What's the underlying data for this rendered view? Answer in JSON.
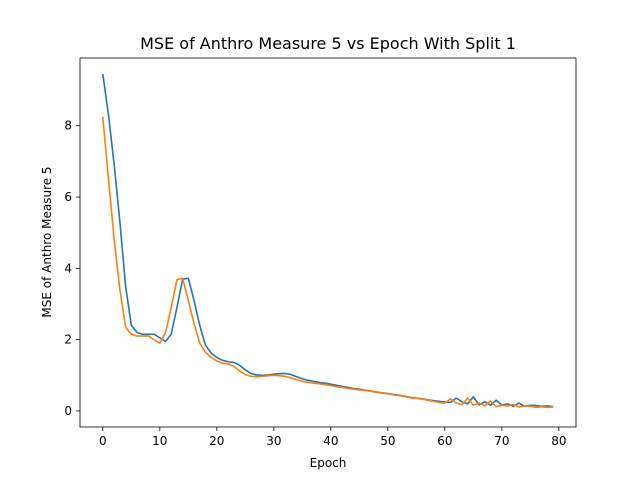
{
  "chart_data": {
    "type": "line",
    "title": "MSE of Anthro Measure 5 vs Epoch With Split 1",
    "xlabel": "Epoch",
    "ylabel": "MSE of Anthro Measure 5",
    "xlim": [
      -4,
      83
    ],
    "ylim": [
      -0.45,
      9.9
    ],
    "xticks": [
      0,
      10,
      20,
      30,
      40,
      50,
      60,
      70,
      80
    ],
    "yticks": [
      0,
      2,
      4,
      6,
      8
    ],
    "grid": false,
    "legend": "none",
    "series": [
      {
        "color": "#1f77b4",
        "x": [
          0,
          1,
          2,
          3,
          4,
          5,
          6,
          7,
          8,
          9,
          10,
          11,
          12,
          13,
          14,
          15,
          16,
          17,
          18,
          19,
          20,
          21,
          22,
          23,
          24,
          25,
          26,
          27,
          28,
          29,
          30,
          31,
          32,
          33,
          34,
          35,
          36,
          37,
          38,
          39,
          40,
          41,
          42,
          43,
          44,
          45,
          46,
          47,
          48,
          49,
          50,
          51,
          52,
          53,
          54,
          55,
          56,
          57,
          58,
          59,
          60,
          61,
          62,
          63,
          64,
          65,
          66,
          67,
          68,
          69,
          70,
          71,
          72,
          73,
          74,
          75,
          76,
          77,
          78,
          79
        ],
        "y": [
          9.45,
          8.3,
          6.9,
          5.3,
          3.5,
          2.4,
          2.2,
          2.15,
          2.15,
          2.15,
          2.05,
          1.95,
          2.15,
          2.9,
          3.7,
          3.72,
          3.1,
          2.4,
          1.85,
          1.62,
          1.5,
          1.42,
          1.38,
          1.36,
          1.28,
          1.15,
          1.05,
          1.01,
          1.0,
          1.01,
          1.03,
          1.05,
          1.05,
          1.02,
          0.96,
          0.9,
          0.86,
          0.83,
          0.8,
          0.78,
          0.75,
          0.72,
          0.69,
          0.66,
          0.63,
          0.61,
          0.58,
          0.56,
          0.53,
          0.51,
          0.49,
          0.46,
          0.44,
          0.41,
          0.38,
          0.36,
          0.34,
          0.31,
          0.29,
          0.27,
          0.25,
          0.24,
          0.36,
          0.26,
          0.2,
          0.4,
          0.17,
          0.26,
          0.16,
          0.3,
          0.16,
          0.2,
          0.13,
          0.22,
          0.13,
          0.16,
          0.15,
          0.13,
          0.14,
          0.12
        ]
      },
      {
        "color": "#ff7f0e",
        "x": [
          0,
          1,
          2,
          3,
          4,
          5,
          6,
          7,
          8,
          9,
          10,
          11,
          12,
          13,
          14,
          15,
          16,
          17,
          18,
          19,
          20,
          21,
          22,
          23,
          24,
          25,
          26,
          27,
          28,
          29,
          30,
          31,
          32,
          33,
          34,
          35,
          36,
          37,
          38,
          39,
          40,
          41,
          42,
          43,
          44,
          45,
          46,
          47,
          48,
          49,
          50,
          51,
          52,
          53,
          54,
          55,
          56,
          57,
          58,
          59,
          60,
          61,
          62,
          63,
          64,
          65,
          66,
          67,
          68,
          69,
          70,
          71,
          72,
          73,
          74,
          75,
          76,
          77,
          78,
          79
        ],
        "y": [
          8.25,
          6.5,
          4.8,
          3.4,
          2.35,
          2.15,
          2.1,
          2.1,
          2.1,
          2.0,
          1.9,
          2.2,
          2.9,
          3.68,
          3.72,
          3.1,
          2.45,
          1.9,
          1.65,
          1.5,
          1.4,
          1.34,
          1.32,
          1.25,
          1.12,
          1.02,
          0.97,
          0.96,
          0.97,
          0.99,
          1.0,
          0.99,
          0.97,
          0.93,
          0.88,
          0.83,
          0.8,
          0.78,
          0.76,
          0.74,
          0.71,
          0.68,
          0.66,
          0.63,
          0.61,
          0.59,
          0.57,
          0.55,
          0.52,
          0.5,
          0.48,
          0.45,
          0.43,
          0.4,
          0.37,
          0.35,
          0.33,
          0.3,
          0.27,
          0.24,
          0.22,
          0.34,
          0.22,
          0.18,
          0.36,
          0.16,
          0.22,
          0.14,
          0.28,
          0.12,
          0.16,
          0.14,
          0.18,
          0.11,
          0.14,
          0.13,
          0.1,
          0.12,
          0.1,
          0.11
        ]
      }
    ]
  }
}
